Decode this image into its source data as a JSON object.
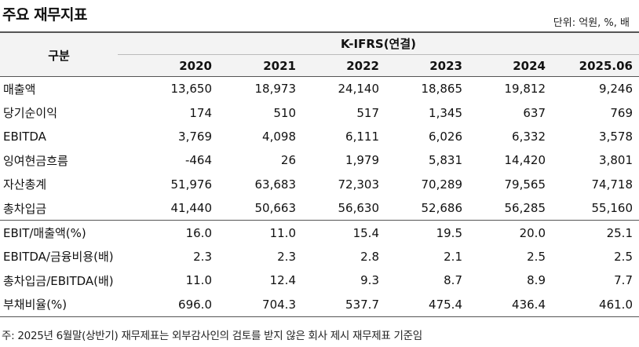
{
  "title": "주요 재무지표",
  "unit": "단위: 억원, %, 배",
  "header": {
    "gubun": "구분",
    "standard": "K-IFRS(연결)",
    "years": [
      "2020",
      "2021",
      "2022",
      "2023",
      "2024",
      "2025.06"
    ]
  },
  "groups": [
    [
      {
        "label": "매출액",
        "values": [
          "13,650",
          "18,973",
          "24,140",
          "18,865",
          "19,812",
          "9,246"
        ]
      },
      {
        "label": "당기순이익",
        "values": [
          "174",
          "510",
          "517",
          "1,345",
          "637",
          "769"
        ]
      },
      {
        "label": "EBITDA",
        "values": [
          "3,769",
          "4,098",
          "6,111",
          "6,026",
          "6,332",
          "3,578"
        ]
      },
      {
        "label": "잉여현금흐름",
        "values": [
          "-464",
          "26",
          "1,979",
          "5,831",
          "14,420",
          "3,801"
        ]
      },
      {
        "label": "자산총계",
        "values": [
          "51,976",
          "63,683",
          "72,303",
          "70,289",
          "79,565",
          "74,718"
        ]
      },
      {
        "label": "총차입금",
        "values": [
          "41,440",
          "50,663",
          "56,630",
          "52,686",
          "56,285",
          "55,160"
        ]
      }
    ],
    [
      {
        "label": "EBIT/매출액(%)",
        "values": [
          "16.0",
          "11.0",
          "15.4",
          "19.5",
          "20.0",
          "25.1"
        ]
      },
      {
        "label": "EBITDA/금융비용(배)",
        "values": [
          "2.3",
          "2.3",
          "2.8",
          "2.1",
          "2.5",
          "2.5"
        ]
      },
      {
        "label": "총차입금/EBITDA(배)",
        "values": [
          "11.0",
          "12.4",
          "9.3",
          "8.7",
          "8.9",
          "7.7"
        ]
      },
      {
        "label": "부채비율(%)",
        "values": [
          "696.0",
          "704.3",
          "537.7",
          "475.4",
          "436.4",
          "461.0"
        ]
      }
    ]
  ],
  "footnote": "주: 2025년 6월말(상반기) 재무제표는 외부감사인의 검토를 받지 않은 회사 제시 재무제표 기준임"
}
